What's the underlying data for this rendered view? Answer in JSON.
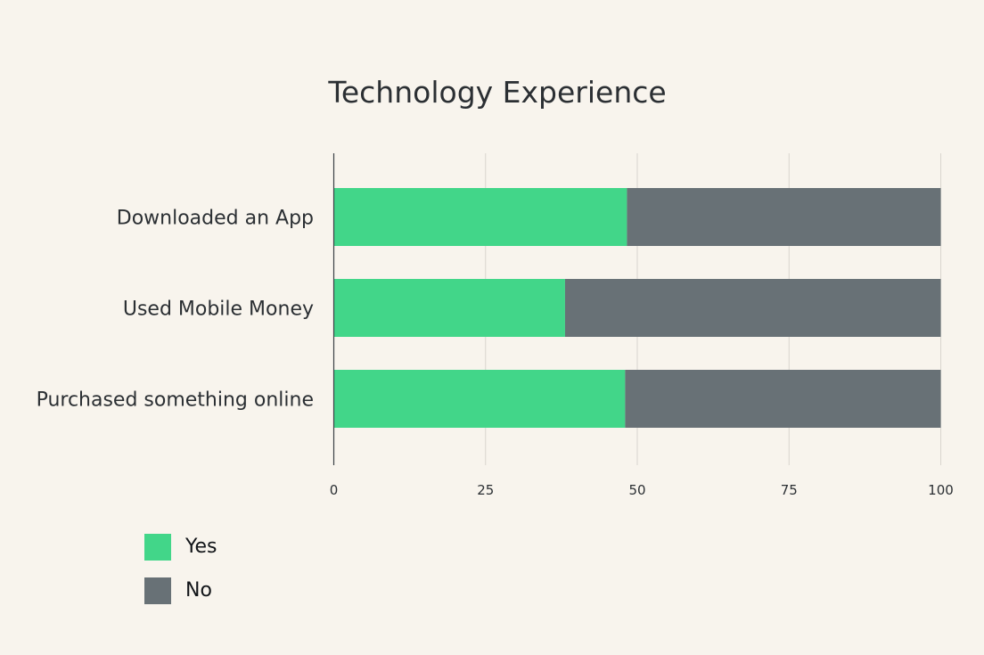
{
  "chart_data": {
    "type": "bar",
    "orientation": "horizontal",
    "stacked": true,
    "title": "Technology Experience",
    "categories": [
      "Downloaded an App",
      "Used Mobile Money",
      "Purchased something online"
    ],
    "series": [
      {
        "name": "Yes",
        "color": "#42d689",
        "values": [
          48.3,
          38.1,
          48.0
        ]
      },
      {
        "name": "No",
        "color": "#687176",
        "values": [
          51.7,
          61.9,
          52.0
        ]
      }
    ],
    "xticks": [
      "0",
      "25",
      "50",
      "75",
      "100"
    ],
    "xlim": [
      0,
      100
    ],
    "grid": true,
    "legend_position": "bottom-left",
    "xlabel": "",
    "ylabel": ""
  },
  "legend": {
    "items": [
      {
        "label": "Yes",
        "color": "#42d689"
      },
      {
        "label": "No",
        "color": "#687176"
      }
    ]
  }
}
